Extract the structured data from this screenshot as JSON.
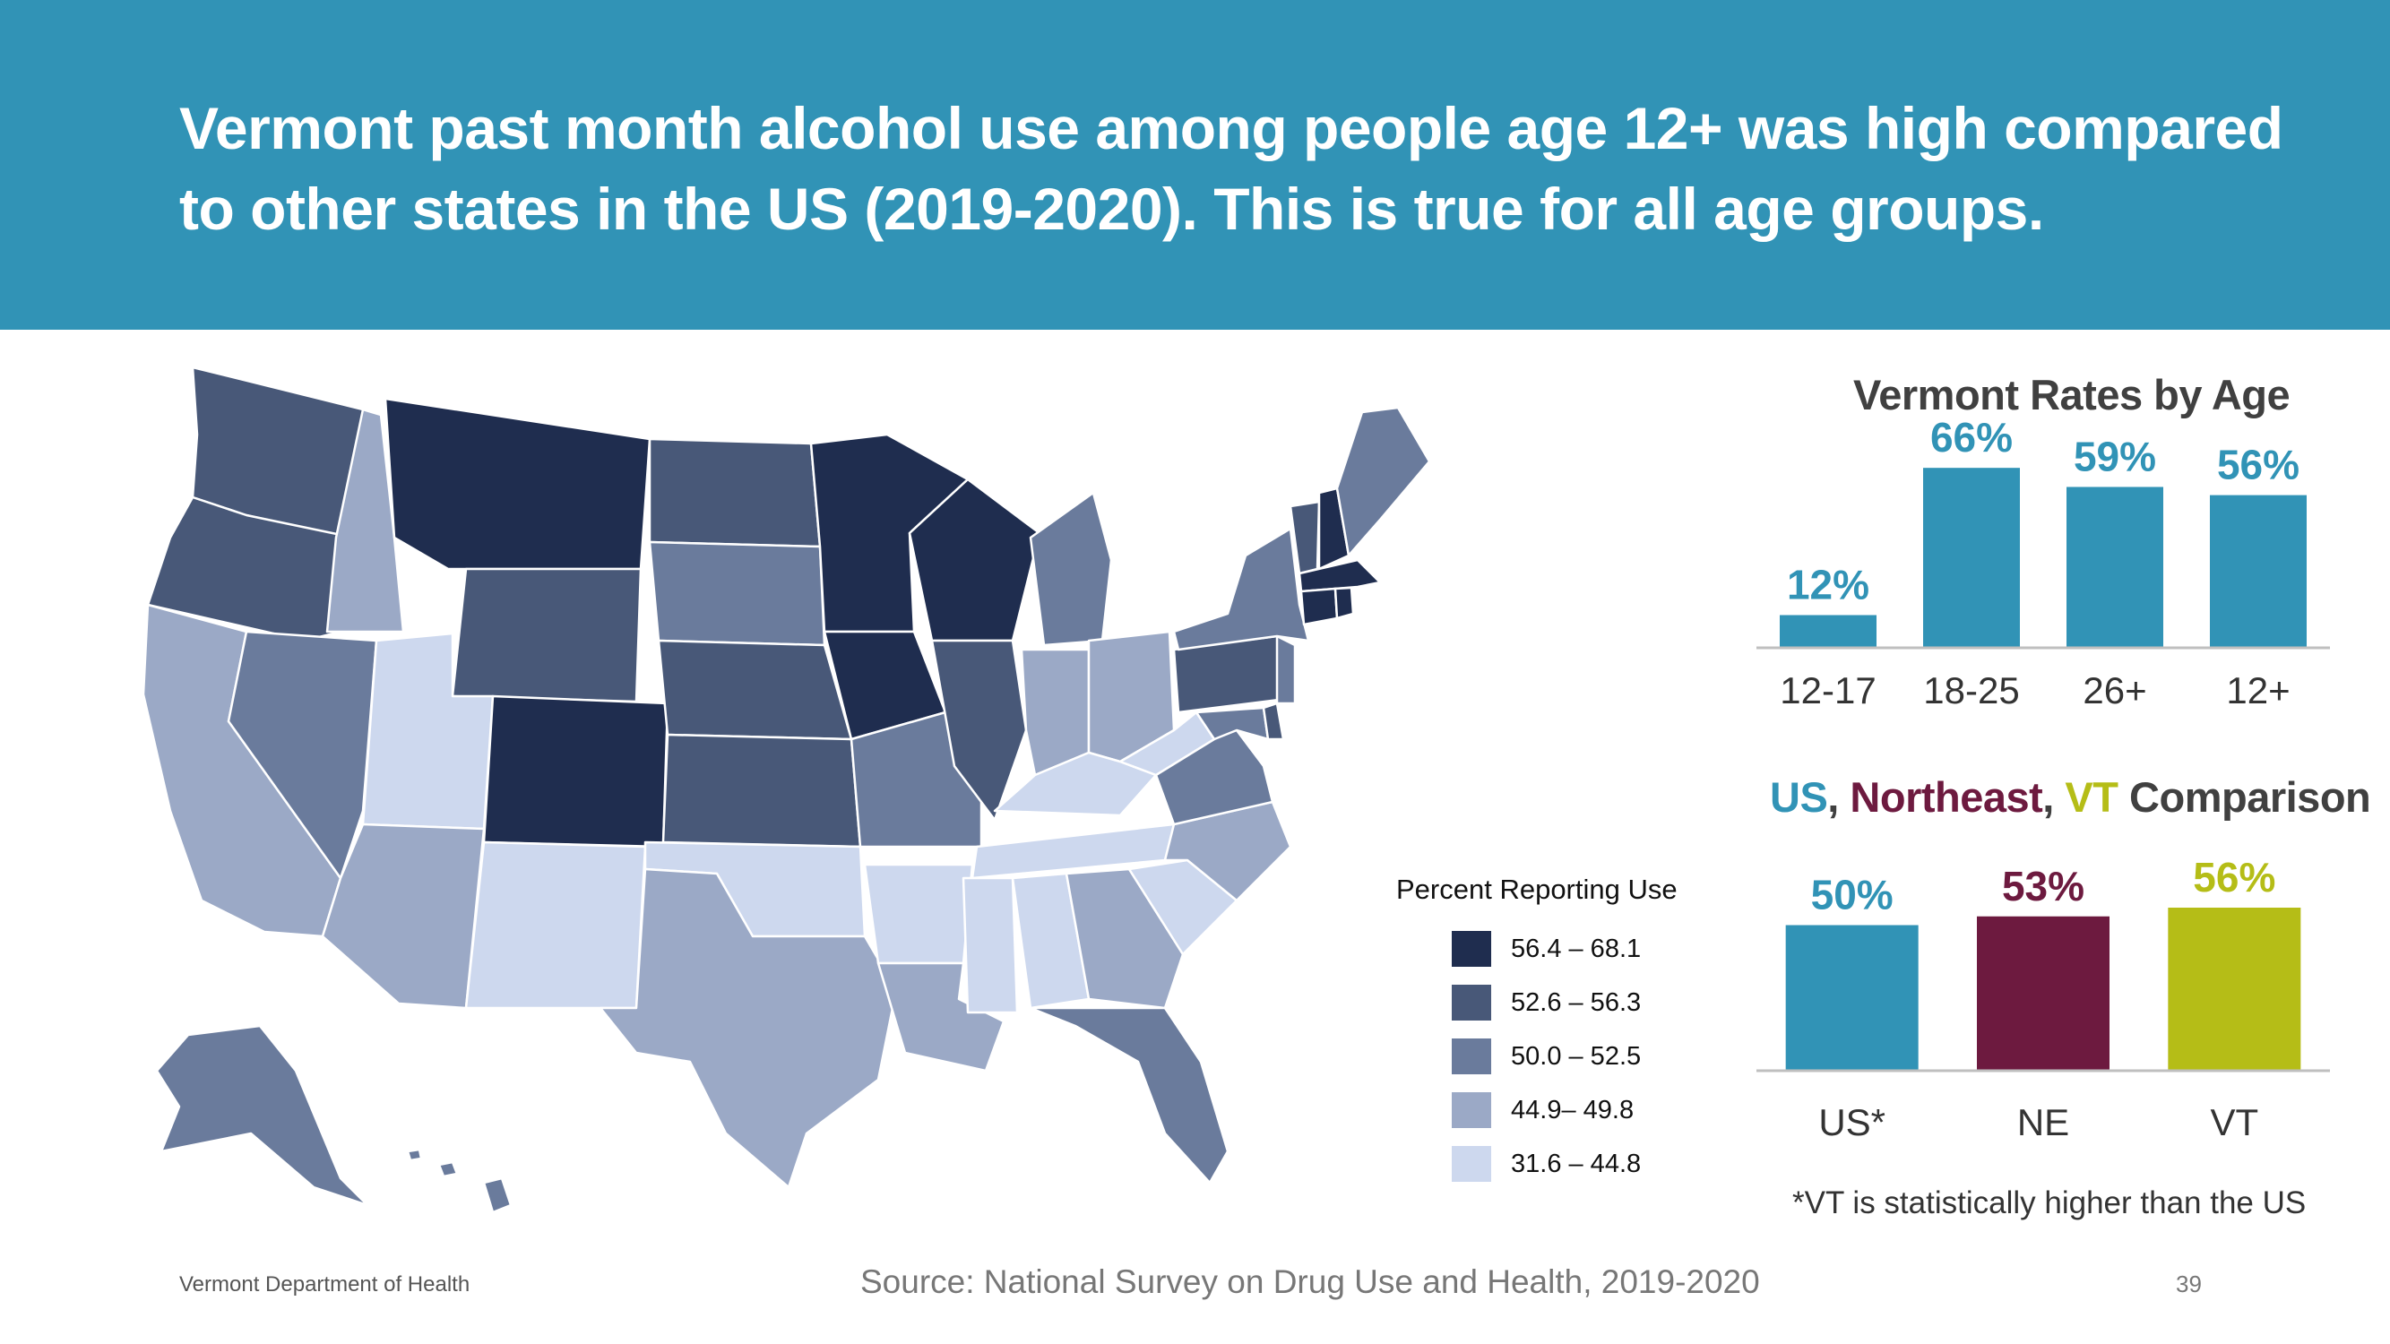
{
  "headline": "Vermont past month alcohol use among people age 12+ was high compared\nto other states in the US (2019-2020).  This is true for all age groups.",
  "colors": {
    "banner": "#3193b6",
    "bin1": "#1f2d4f",
    "bin2": "#485878",
    "bin3": "#6a7b9c",
    "bin4": "#9ba9c6",
    "bin5": "#cdd8ee",
    "us": "#3193b6",
    "ne": "#6d1a3f",
    "vt": "#b5bd17",
    "title_text": "#404040"
  },
  "map": {
    "legend_title": "Percent Reporting Use",
    "legend": [
      {
        "label": "56.4 – 68.1",
        "color": "#1f2d4f"
      },
      {
        "label": "52.6 – 56.3",
        "color": "#485878"
      },
      {
        "label": "50.0 – 52.5",
        "color": "#6a7b9c"
      },
      {
        "label": "44.9– 49.8",
        "color": "#9ba9c6"
      },
      {
        "label": "31.6 – 44.8",
        "color": "#cdd8ee"
      }
    ]
  },
  "age_panel": {
    "title": "Vermont Rates by Age"
  },
  "comparison_panel": {
    "title_parts": [
      {
        "text": "US",
        "color": "#3193b6"
      },
      {
        "text": ", ",
        "color": "#404040"
      },
      {
        "text": "Northeast",
        "color": "#6d1a3f"
      },
      {
        "text": ", ",
        "color": "#404040"
      },
      {
        "text": "VT",
        "color": "#b5bd17"
      },
      {
        "text": " Comparison",
        "color": "#404040"
      }
    ],
    "footnote": "*VT is statistically higher than the US"
  },
  "chart_data": [
    {
      "type": "bar",
      "title": "Vermont Rates by Age",
      "categories": [
        "12-17",
        "18-25",
        "26+",
        "12+"
      ],
      "values": [
        12,
        66,
        59,
        56
      ],
      "value_labels": [
        "12%",
        "66%",
        "59%",
        "56%"
      ],
      "ylim": [
        0,
        70
      ],
      "color": "#3193b6",
      "grid": false
    },
    {
      "type": "bar",
      "title": "US, Northeast, VT Comparison",
      "categories": [
        "US*",
        "NE",
        "VT"
      ],
      "values": [
        50,
        53,
        56
      ],
      "value_labels": [
        "50%",
        "53%",
        "56%"
      ],
      "colors": [
        "#3193b6",
        "#6d1a3f",
        "#b5bd17"
      ],
      "ylim": [
        0,
        60
      ],
      "grid": false
    }
  ],
  "footer": {
    "org": "Vermont Department of Health",
    "source": "Source: National Survey on Drug Use and Health, 2019-2020",
    "page": "39"
  }
}
